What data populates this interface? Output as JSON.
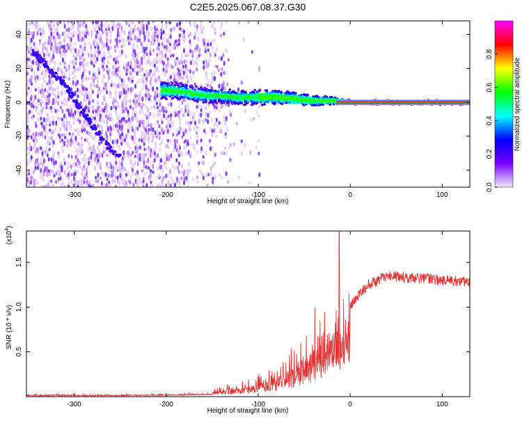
{
  "title": "C2E5.2025.067.08.37.G30",
  "chart_data": [
    {
      "type": "heatmap",
      "xlabel": "Height of straight line (km)",
      "ylabel": "Frequency (Hz)",
      "xlim": [
        -352,
        130
      ],
      "ylim": [
        -50,
        48
      ],
      "xticks": [
        -300,
        -200,
        -100,
        0,
        100
      ],
      "yticks": [
        -40,
        -20,
        0,
        20,
        40
      ],
      "colorbar": {
        "label": "Normalized spectral amplitude",
        "range": [
          0,
          1
        ],
        "ticks": [
          "0.0",
          "0.2",
          "0.4",
          "0.6",
          "0.8"
        ],
        "tick_values": [
          0,
          0.2,
          0.4,
          0.6,
          0.8
        ],
        "colors": [
          "#f2eaff",
          "#7a00ff",
          "#0000ff",
          "#00ffff",
          "#00ff00",
          "#ffff00",
          "#ff0000",
          "#ff00ff"
        ]
      },
      "features": {
        "noise_region_x": [
          -352,
          -130
        ],
        "band_center_hz": [
          [
            -200,
            7
          ],
          [
            -180,
            6
          ],
          [
            -160,
            4
          ],
          [
            -140,
            4
          ],
          [
            -120,
            3
          ],
          [
            -100,
            3
          ],
          [
            -80,
            3
          ],
          [
            -60,
            2
          ],
          [
            -40,
            1
          ],
          [
            -20,
            1
          ],
          [
            0,
            0
          ],
          [
            130,
            0
          ]
        ],
        "band_halfwidth_hz": [
          [
            -200,
            6
          ],
          [
            -150,
            5
          ],
          [
            -100,
            5
          ],
          [
            -60,
            4
          ],
          [
            -30,
            3
          ],
          [
            0,
            1.5
          ],
          [
            130,
            1.5
          ]
        ],
        "diagonal_streak": [
          [
            -345,
            30
          ],
          [
            -310,
            10
          ],
          [
            -285,
            -10
          ],
          [
            -265,
            -25
          ],
          [
            -250,
            -32
          ]
        ],
        "constant_line": {
          "x": [
            -15,
            130
          ],
          "y": 0
        }
      }
    },
    {
      "type": "line",
      "xlabel": "Height of straight line (km)",
      "ylabel": "SNR (10 * v/v)",
      "y_multiplier": "(x10",
      "y_multiplier_exp": "4",
      "y_multiplier_close": ")",
      "xlim": [
        -352,
        130
      ],
      "ylim": [
        0,
        1.85
      ],
      "xticks": [
        -300,
        -200,
        -100,
        0,
        100
      ],
      "yticks": [
        0.5,
        1.0,
        1.5
      ],
      "ytick_labels": [
        "0.5",
        "1.0",
        "1.5"
      ],
      "series": [
        {
          "color": "#e83030",
          "x": [
            -352,
            -300,
            -250,
            -200,
            -180,
            -160,
            -140,
            -120,
            -100,
            -90,
            -80,
            -70,
            -60,
            -50,
            -40,
            -30,
            -25,
            -20,
            -15,
            -10,
            -5,
            0,
            10,
            20,
            30,
            40,
            60,
            80,
            100,
            130
          ],
          "y": [
            0.02,
            0.02,
            0.02,
            0.03,
            0.04,
            0.05,
            0.06,
            0.08,
            0.12,
            0.15,
            0.18,
            0.22,
            0.28,
            0.35,
            0.45,
            0.6,
            0.75,
            0.85,
            0.9,
            0.85,
            0.9,
            1.0,
            1.15,
            1.25,
            1.3,
            1.35,
            1.33,
            1.32,
            1.3,
            1.28
          ]
        }
      ],
      "annotations": {
        "spike": {
          "x": -12,
          "y": 1.85
        }
      }
    }
  ]
}
